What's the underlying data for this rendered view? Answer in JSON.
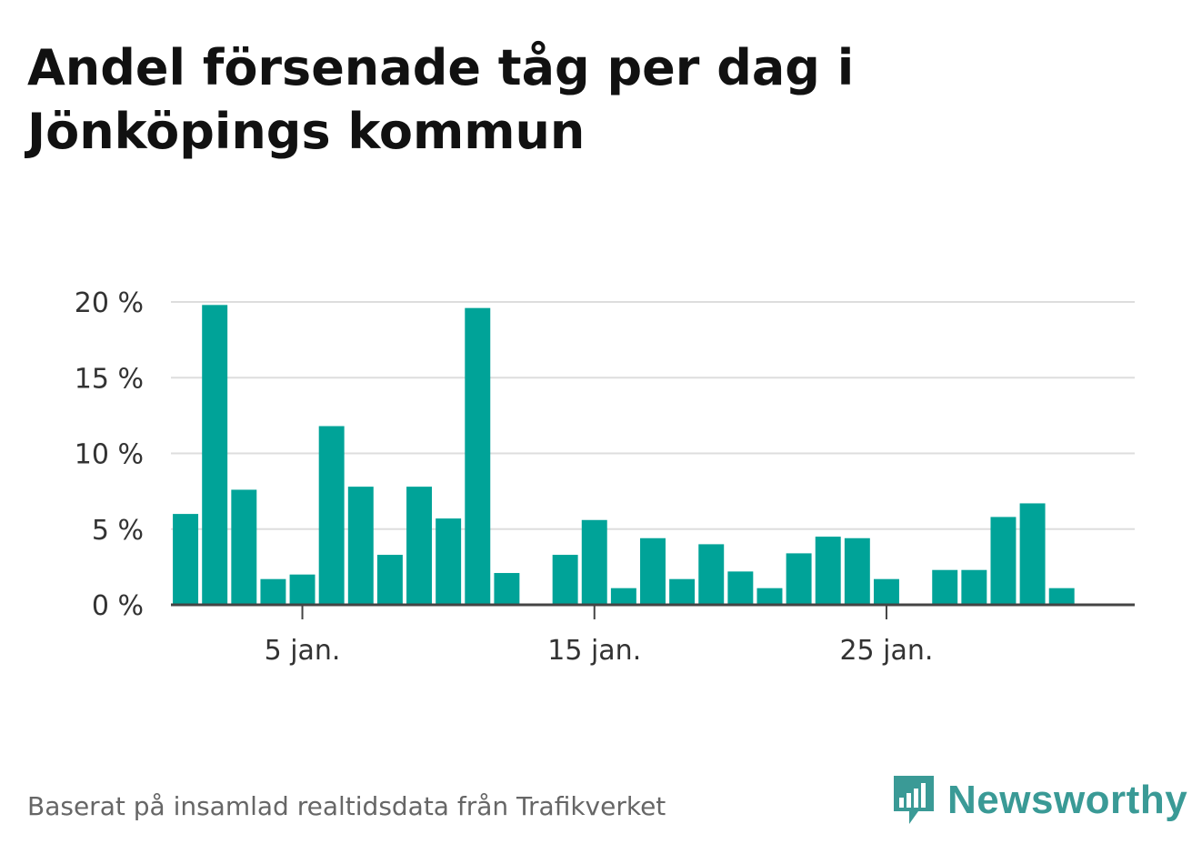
{
  "chart_data": {
    "type": "bar",
    "title": "Andel försenade tåg per dag i Jönköpings kommun",
    "x": [
      1,
      2,
      3,
      4,
      5,
      6,
      7,
      8,
      9,
      10,
      11,
      12,
      13,
      14,
      15,
      16,
      17,
      18,
      19,
      20,
      21,
      22,
      23,
      24,
      25,
      26,
      27,
      28,
      29,
      30,
      31
    ],
    "values": [
      6.0,
      19.8,
      7.6,
      1.7,
      2.0,
      11.8,
      7.8,
      3.3,
      7.8,
      5.7,
      19.6,
      2.1,
      0,
      3.3,
      5.6,
      1.1,
      4.4,
      1.7,
      4.0,
      2.2,
      1.1,
      3.4,
      4.5,
      4.4,
      1.7,
      0,
      2.3,
      2.3,
      5.8,
      6.7,
      1.1
    ],
    "ylim": [
      0,
      20
    ],
    "y_ticks": [
      {
        "value": 0,
        "label": "0 %"
      },
      {
        "value": 5,
        "label": "5 %"
      },
      {
        "value": 10,
        "label": "10 %"
      },
      {
        "value": 15,
        "label": "15 %"
      },
      {
        "value": 20,
        "label": "20 %"
      }
    ],
    "x_ticks": [
      {
        "value": 5,
        "label": "5 jan."
      },
      {
        "value": 15,
        "label": "15 jan."
      },
      {
        "value": 25,
        "label": "25 jan."
      }
    ],
    "grid": true,
    "bar_color": "#00a398"
  },
  "source_text": "Baserat på insamlad realtidsdata från Trafikverket",
  "brand": {
    "name": "Newsworthy",
    "color": "#3a9a96"
  }
}
